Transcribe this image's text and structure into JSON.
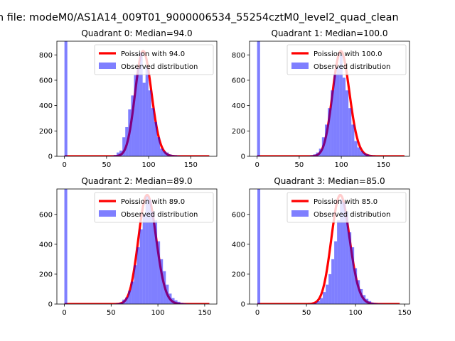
{
  "chart_data": {
    "type": "bar",
    "suptitle": "n file: modeM0/AS1A14_009T01_9000006534_55254cztM0_level2_quad_clean",
    "colors": {
      "bars": "#0000ff",
      "curve": "#ff0000"
    },
    "legend_placement": "top-right",
    "panels": [
      {
        "title": "Quadrant 0: Median=94.0",
        "legend": [
          "Poission with 94.0",
          "Observed distribution"
        ],
        "lambda": 94.0,
        "poisson_scale": 20190,
        "curve_xmax": 172,
        "bin_width": 3.44,
        "counts": [
          920,
          0,
          0,
          0,
          0,
          0,
          0,
          0,
          0,
          0,
          0,
          0,
          0,
          0,
          0,
          0,
          5,
          10,
          30,
          45,
          150,
          230,
          370,
          480,
          640,
          700,
          820,
          580,
          700,
          520,
          380,
          270,
          150,
          60,
          40,
          30,
          15,
          10,
          8,
          5,
          3,
          2,
          2,
          1,
          1,
          1,
          1,
          1,
          1,
          1
        ],
        "xlim": [
          -9,
          181
        ],
        "ylim": [
          0,
          908
        ],
        "xticks": [
          0,
          50,
          100,
          150
        ],
        "yticks": [
          0,
          200,
          400,
          600,
          800
        ]
      },
      {
        "title": "Quadrant 1: Median=100.0",
        "legend": [
          "Poission with 100.0",
          "Observed distribution"
        ],
        "lambda": 100.0,
        "poisson_scale": 20800,
        "curve_xmax": 175,
        "bin_width": 3.5,
        "counts": [
          920,
          0,
          0,
          0,
          0,
          0,
          0,
          0,
          0,
          0,
          0,
          0,
          0,
          0,
          0,
          0,
          0,
          3,
          8,
          15,
          30,
          60,
          150,
          250,
          380,
          520,
          650,
          700,
          800,
          620,
          520,
          380,
          250,
          120,
          70,
          40,
          25,
          15,
          8,
          5,
          3,
          2,
          2,
          1,
          1,
          1,
          1,
          0,
          0,
          1
        ],
        "xlim": [
          -9,
          181
        ],
        "ylim": [
          0,
          908
        ],
        "xticks": [
          0,
          50,
          100,
          150
        ],
        "yticks": [
          0,
          200,
          400,
          600,
          800
        ]
      },
      {
        "title": "Quadrant 2: Median=89.0",
        "legend": [
          "Poission with 89.0",
          "Observed distribution"
        ],
        "lambda": 89.0,
        "poisson_scale": 17260,
        "curve_xmax": 155,
        "bin_width": 3.1,
        "counts": [
          800,
          0,
          0,
          0,
          0,
          0,
          0,
          0,
          0,
          0,
          0,
          0,
          0,
          0,
          0,
          0,
          0,
          3,
          5,
          10,
          30,
          45,
          90,
          150,
          260,
          380,
          500,
          600,
          720,
          700,
          620,
          560,
          420,
          300,
          220,
          130,
          70,
          40,
          25,
          15,
          8,
          5,
          3,
          2,
          1,
          1,
          1,
          0,
          0,
          1
        ],
        "xlim": [
          -8,
          163
        ],
        "ylim": [
          0,
          770
        ],
        "xticks": [
          0,
          50,
          100,
          150
        ],
        "yticks": [
          0,
          200,
          400,
          600
        ]
      },
      {
        "title": "Quadrant 3: Median=85.0",
        "legend": [
          "Poission with 85.0",
          "Observed distribution"
        ],
        "lambda": 85.0,
        "poisson_scale": 16860,
        "curve_xmax": 145,
        "bin_width": 2.9,
        "counts": [
          800,
          0,
          0,
          0,
          0,
          0,
          0,
          0,
          0,
          0,
          0,
          0,
          0,
          0,
          0,
          0,
          0,
          0,
          2,
          3,
          8,
          20,
          40,
          80,
          130,
          200,
          300,
          420,
          560,
          700,
          680,
          620,
          480,
          380,
          240,
          160,
          100,
          60,
          35,
          20,
          10,
          6,
          4,
          3,
          2,
          1,
          1,
          1,
          0,
          1
        ],
        "xlim": [
          -8,
          155
        ],
        "ylim": [
          0,
          770
        ],
        "xticks": [
          0,
          50,
          100,
          150
        ],
        "yticks": [
          0,
          200,
          400,
          600
        ]
      }
    ]
  }
}
